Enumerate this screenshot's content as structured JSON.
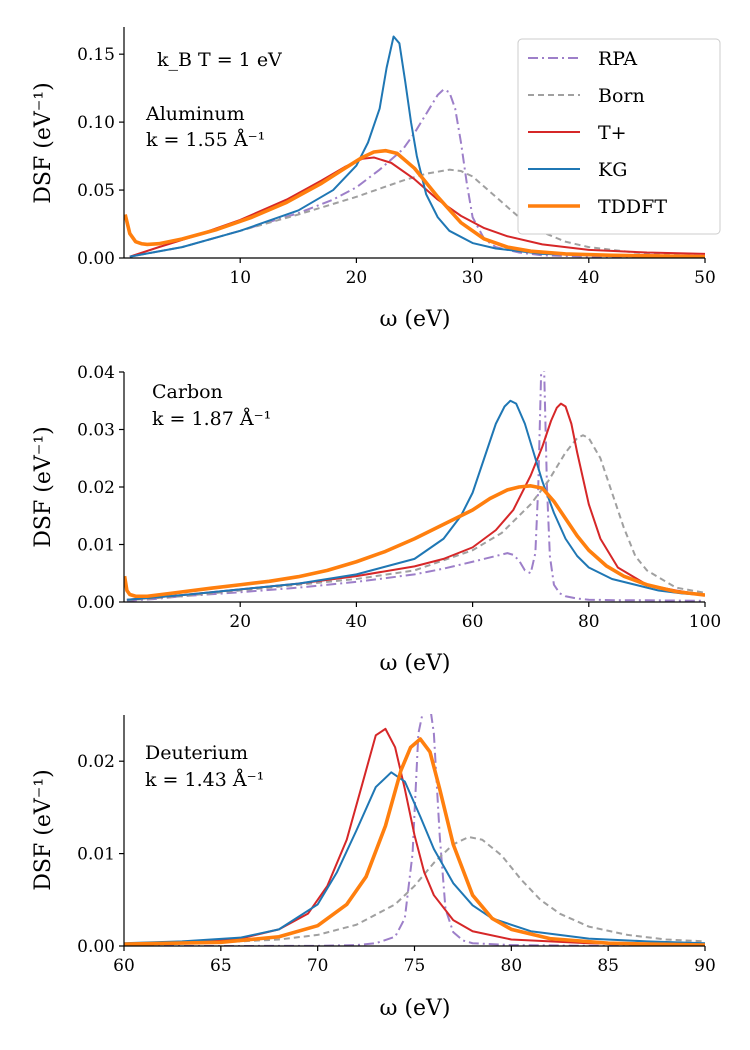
{
  "series_styles": {
    "RPA": {
      "color": "#9d7fc9",
      "dash": "10,4,2,4",
      "width": 2
    },
    "Born": {
      "color": "#a0a0a0",
      "dash": "6,4",
      "width": 2
    },
    "T+": {
      "color": "#d62728",
      "dash": "",
      "width": 2
    },
    "KG": {
      "color": "#1f77b4",
      "dash": "",
      "width": 2
    },
    "TDDFT": {
      "color": "#ff7f0e",
      "dash": "",
      "width": 3.6
    }
  },
  "chart_data": [
    {
      "type": "line",
      "title": "",
      "xlabel": "ω (eV)",
      "ylabel": "DSF (eV⁻¹)",
      "xlim": [
        0,
        50
      ],
      "ylim": [
        0,
        0.17
      ],
      "xticks": [
        10,
        20,
        30,
        40,
        50
      ],
      "xtick_labels": [
        "10",
        "20",
        "30",
        "40",
        "50"
      ],
      "yticks": [
        0,
        0.05,
        0.1,
        0.15
      ],
      "ytick_labels": [
        "0.00",
        "0.05",
        "0.10",
        "0.15"
      ],
      "annotations": [
        "k_B T = 1 eV",
        "Aluminum",
        "k = 1.55 Å⁻¹"
      ],
      "legend": {
        "position": "top-right",
        "entries": [
          "RPA",
          "Born",
          "T+",
          "KG",
          "TDDFT"
        ]
      },
      "series": [
        {
          "name": "RPA",
          "x": [
            0.5,
            5,
            10,
            15,
            18,
            20,
            22,
            24,
            25,
            26,
            27,
            27.5,
            28,
            28.5,
            29,
            29.5,
            30,
            31,
            32,
            34,
            36,
            40,
            45,
            50
          ],
          "y": [
            0.001,
            0.008,
            0.02,
            0.033,
            0.043,
            0.052,
            0.065,
            0.08,
            0.092,
            0.106,
            0.12,
            0.124,
            0.122,
            0.11,
            0.085,
            0.055,
            0.03,
            0.014,
            0.008,
            0.004,
            0.002,
            0.001,
            0.0005,
            0.0003
          ]
        },
        {
          "name": "Born",
          "x": [
            0.5,
            5,
            10,
            15,
            20,
            24,
            26,
            28,
            29,
            30,
            32,
            34,
            36,
            38,
            40,
            44,
            48,
            50
          ],
          "y": [
            0.001,
            0.008,
            0.02,
            0.032,
            0.045,
            0.057,
            0.062,
            0.065,
            0.064,
            0.06,
            0.045,
            0.03,
            0.019,
            0.012,
            0.008,
            0.004,
            0.002,
            0.0015
          ]
        },
        {
          "name": "T+",
          "x": [
            0.5,
            3,
            6,
            10,
            14,
            17,
            19,
            20.5,
            21.5,
            23,
            25,
            27,
            29,
            31,
            33,
            36,
            40,
            45,
            50
          ],
          "y": [
            0.001,
            0.008,
            0.016,
            0.028,
            0.043,
            0.057,
            0.067,
            0.073,
            0.074,
            0.07,
            0.058,
            0.043,
            0.031,
            0.022,
            0.016,
            0.01,
            0.006,
            0.004,
            0.003
          ]
        },
        {
          "name": "KG",
          "x": [
            0.5,
            5,
            10,
            15,
            18,
            20,
            21,
            22,
            22.6,
            23.2,
            23.7,
            24.2,
            24.7,
            25.2,
            26,
            27,
            28,
            30,
            32,
            36,
            40,
            50
          ],
          "y": [
            0.001,
            0.008,
            0.02,
            0.035,
            0.05,
            0.068,
            0.085,
            0.11,
            0.14,
            0.163,
            0.158,
            0.13,
            0.1,
            0.075,
            0.047,
            0.03,
            0.02,
            0.011,
            0.007,
            0.003,
            0.002,
            0.001
          ]
        },
        {
          "name": "TDDFT",
          "x": [
            0.1,
            0.5,
            1,
            1.5,
            2,
            3,
            5,
            8,
            11,
            14,
            17,
            19,
            20.5,
            21.5,
            22.5,
            23.5,
            25,
            27,
            29,
            31,
            33,
            35,
            38,
            42,
            46,
            50
          ],
          "y": [
            0.032,
            0.018,
            0.012,
            0.0105,
            0.01,
            0.0105,
            0.014,
            0.021,
            0.03,
            0.041,
            0.055,
            0.066,
            0.074,
            0.078,
            0.079,
            0.077,
            0.066,
            0.045,
            0.026,
            0.014,
            0.008,
            0.005,
            0.003,
            0.002,
            0.0015,
            0.001
          ]
        }
      ]
    },
    {
      "type": "line",
      "title": "",
      "xlabel": "ω (eV)",
      "ylabel": "DSF (eV⁻¹)",
      "xlim": [
        0,
        100
      ],
      "ylim": [
        0,
        0.04
      ],
      "xticks": [
        20,
        40,
        60,
        80,
        100
      ],
      "xtick_labels": [
        "20",
        "40",
        "60",
        "80",
        "100"
      ],
      "yticks": [
        0,
        0.01,
        0.02,
        0.03,
        0.04
      ],
      "ytick_labels": [
        "0.00",
        "0.01",
        "0.02",
        "0.03",
        "0.04"
      ],
      "annotations": [
        "Carbon",
        "k = 1.87 Å⁻¹"
      ],
      "series": [
        {
          "name": "RPA",
          "x": [
            0.5,
            5,
            10,
            20,
            30,
            40,
            50,
            55,
            60,
            64,
            66,
            67,
            68,
            69,
            70,
            70.8,
            71.3,
            71.8,
            72.3,
            72.8,
            73.3,
            74,
            75,
            76,
            78,
            80,
            85,
            90,
            100
          ],
          "y": [
            0.0002,
            0.0005,
            0.001,
            0.0017,
            0.0025,
            0.0035,
            0.0048,
            0.0058,
            0.007,
            0.008,
            0.0085,
            0.0082,
            0.0072,
            0.0055,
            0.005,
            0.0085,
            0.02,
            0.04,
            0.041,
            0.02,
            0.008,
            0.003,
            0.0015,
            0.001,
            0.0006,
            0.0004,
            0.0003,
            0.0003,
            0.0002
          ]
        },
        {
          "name": "Born",
          "x": [
            0.5,
            10,
            20,
            30,
            40,
            50,
            60,
            65,
            70,
            73,
            76,
            78,
            79,
            80,
            82,
            84,
            86,
            88,
            90,
            95,
            100
          ],
          "y": [
            0.0003,
            0.001,
            0.002,
            0.003,
            0.004,
            0.0055,
            0.009,
            0.012,
            0.017,
            0.021,
            0.026,
            0.0285,
            0.029,
            0.0285,
            0.025,
            0.019,
            0.013,
            0.008,
            0.0055,
            0.0025,
            0.0016
          ]
        },
        {
          "name": "T+",
          "x": [
            0.5,
            10,
            20,
            30,
            40,
            50,
            55,
            60,
            64,
            67,
            70,
            72,
            73.5,
            74.5,
            75.2,
            76,
            77,
            78,
            80,
            82,
            85,
            90,
            95,
            100
          ],
          "y": [
            0.0004,
            0.0012,
            0.0022,
            0.0032,
            0.0045,
            0.0062,
            0.0075,
            0.0095,
            0.0125,
            0.016,
            0.022,
            0.027,
            0.0315,
            0.0338,
            0.0345,
            0.034,
            0.031,
            0.026,
            0.017,
            0.011,
            0.006,
            0.003,
            0.002,
            0.0012
          ]
        },
        {
          "name": "KG",
          "x": [
            0.5,
            10,
            20,
            30,
            40,
            50,
            55,
            58,
            60,
            62,
            64,
            65.5,
            66.5,
            67.5,
            69,
            70.5,
            72,
            74,
            76,
            78,
            80,
            84,
            88,
            92,
            96,
            100
          ],
          "y": [
            0.0004,
            0.0012,
            0.0022,
            0.0032,
            0.0048,
            0.0075,
            0.011,
            0.015,
            0.019,
            0.025,
            0.031,
            0.034,
            0.035,
            0.0345,
            0.031,
            0.026,
            0.021,
            0.0155,
            0.011,
            0.008,
            0.006,
            0.004,
            0.003,
            0.002,
            0.0015,
            0.0012
          ]
        },
        {
          "name": "TDDFT",
          "x": [
            0.1,
            0.5,
            1,
            2,
            4,
            8,
            15,
            20,
            25,
            30,
            35,
            40,
            45,
            50,
            55,
            60,
            63,
            66,
            68,
            70,
            72,
            74,
            76,
            78,
            80,
            83,
            86,
            90,
            95,
            100
          ],
          "y": [
            0.0045,
            0.002,
            0.0013,
            0.001,
            0.001,
            0.0015,
            0.0024,
            0.003,
            0.0036,
            0.0044,
            0.0055,
            0.007,
            0.0088,
            0.011,
            0.0135,
            0.016,
            0.018,
            0.0195,
            0.02,
            0.0202,
            0.0198,
            0.0175,
            0.0145,
            0.0115,
            0.009,
            0.0063,
            0.0045,
            0.003,
            0.0018,
            0.0012
          ]
        }
      ]
    },
    {
      "type": "line",
      "title": "",
      "xlabel": "ω (eV)",
      "ylabel": "DSF (eV⁻¹)",
      "xlim": [
        60,
        90
      ],
      "ylim": [
        0,
        0.025
      ],
      "xticks": [
        60,
        65,
        70,
        75,
        80,
        85,
        90
      ],
      "xtick_labels": [
        "60",
        "65",
        "70",
        "75",
        "80",
        "85",
        "90"
      ],
      "yticks": [
        0,
        0.01,
        0.02
      ],
      "ytick_labels": [
        "0.00",
        "0.01",
        "0.02"
      ],
      "annotations": [
        "Deuterium",
        "k = 1.43 Å⁻¹"
      ],
      "series": [
        {
          "name": "RPA",
          "x": [
            60,
            65,
            70,
            72,
            73,
            74,
            74.5,
            74.9,
            75.2,
            75.5,
            75.8,
            76,
            76.3,
            76.6,
            77,
            77.5,
            78,
            80,
            85,
            90
          ],
          "y": [
            0,
            0,
            2e-05,
            0.0001,
            0.0003,
            0.001,
            0.003,
            0.01,
            0.023,
            0.026,
            0.026,
            0.023,
            0.012,
            0.004,
            0.0015,
            0.0006,
            0.0003,
            0.0001,
            0,
            0
          ]
        },
        {
          "name": "Born",
          "x": [
            60,
            65,
            68,
            70,
            72,
            74,
            75,
            76,
            77,
            77.8,
            78.5,
            79.5,
            80.5,
            81.5,
            82.5,
            84,
            86,
            88,
            90
          ],
          "y": [
            0.0002,
            0.0004,
            0.0007,
            0.0012,
            0.0023,
            0.0045,
            0.0065,
            0.009,
            0.011,
            0.0118,
            0.0115,
            0.0098,
            0.0072,
            0.005,
            0.0035,
            0.0021,
            0.0012,
            0.0007,
            0.0005
          ]
        },
        {
          "name": "T+",
          "x": [
            60,
            63,
            66,
            68,
            69.5,
            70.5,
            71.5,
            72.3,
            73,
            73.5,
            74,
            74.5,
            75,
            75.5,
            76,
            77,
            78,
            80,
            84,
            90
          ],
          "y": [
            0.0002,
            0.0004,
            0.0008,
            0.0018,
            0.0035,
            0.0065,
            0.0115,
            0.0175,
            0.0228,
            0.0235,
            0.0215,
            0.017,
            0.012,
            0.008,
            0.0055,
            0.0028,
            0.0016,
            0.0007,
            0.0003,
            0.0001
          ]
        },
        {
          "name": "KG",
          "x": [
            60,
            63,
            66,
            68,
            70,
            71,
            72,
            73,
            73.8,
            74.5,
            75.3,
            76,
            77,
            78,
            79,
            81,
            84,
            87,
            90
          ],
          "y": [
            0.0003,
            0.0005,
            0.0009,
            0.0018,
            0.0045,
            0.008,
            0.0125,
            0.0172,
            0.0188,
            0.0178,
            0.014,
            0.0105,
            0.0068,
            0.0044,
            0.003,
            0.0016,
            0.0008,
            0.0005,
            0.0003
          ]
        },
        {
          "name": "TDDFT",
          "x": [
            60,
            65,
            68,
            70,
            71.5,
            72.5,
            73.5,
            74.3,
            74.8,
            75.3,
            75.8,
            76.3,
            77,
            78,
            79,
            80,
            82,
            85,
            90
          ],
          "y": [
            0.0002,
            0.0004,
            0.001,
            0.0022,
            0.0045,
            0.0075,
            0.013,
            0.019,
            0.0215,
            0.0224,
            0.021,
            0.017,
            0.011,
            0.0055,
            0.003,
            0.0018,
            0.0008,
            0.0003,
            0.0001
          ]
        }
      ]
    }
  ]
}
